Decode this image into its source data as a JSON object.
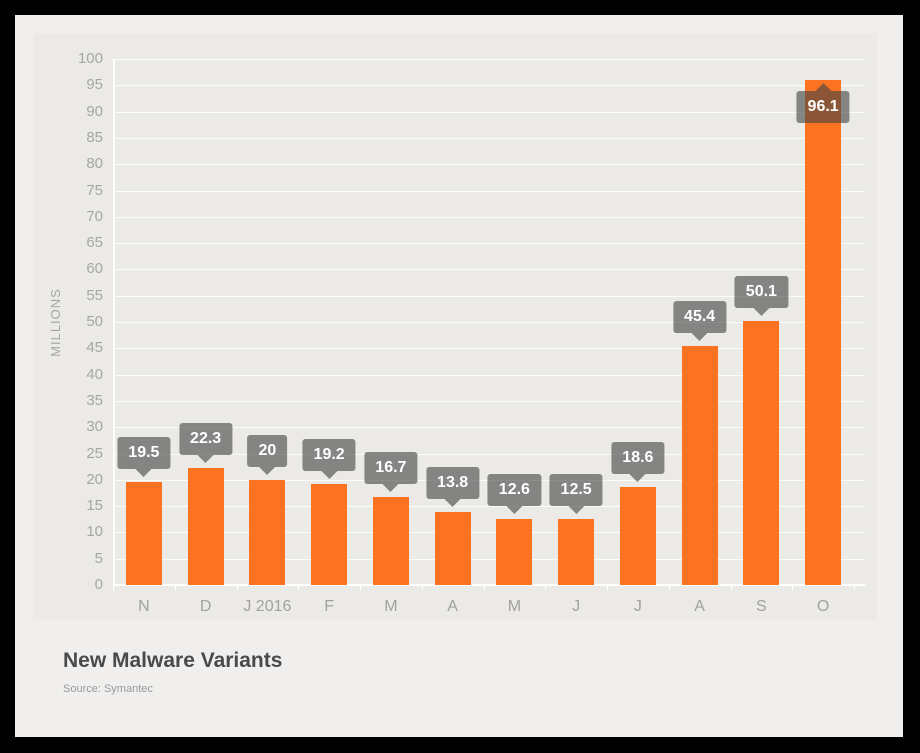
{
  "chart": {
    "title": "New Malware Variants",
    "source": "Source: Symantec"
  },
  "chart_data": {
    "type": "bar",
    "categories": [
      "N",
      "D",
      "J 2016",
      "F",
      "M",
      "A",
      "M",
      "J",
      "J",
      "A",
      "S",
      "O"
    ],
    "values": [
      19.5,
      22.3,
      20,
      19.2,
      16.7,
      13.8,
      12.6,
      12.5,
      18.6,
      45.4,
      50.1,
      96.1
    ],
    "value_labels": [
      "19.5",
      "22.3",
      "20",
      "19.2",
      "16.7",
      "13.8",
      "12.6",
      "12.5",
      "18.6",
      "45.4",
      "50.1",
      "96.1"
    ],
    "title": "New Malware Variants",
    "source": "Source: Symantec",
    "xlabel": "",
    "ylabel": "MILLIONS",
    "ylim": [
      0,
      100
    ],
    "ytick_step": 5,
    "grid": true,
    "legend": false,
    "colors": {
      "bar": "#fb7221",
      "label_bubble": "rgba(70,70,70,0.62)",
      "label_text": "#ffffff",
      "card_background": "#f0efee",
      "plot_background": "#ebeae7",
      "axis_text": "#a7a6a3",
      "title_text": "#4a4a4a"
    }
  }
}
